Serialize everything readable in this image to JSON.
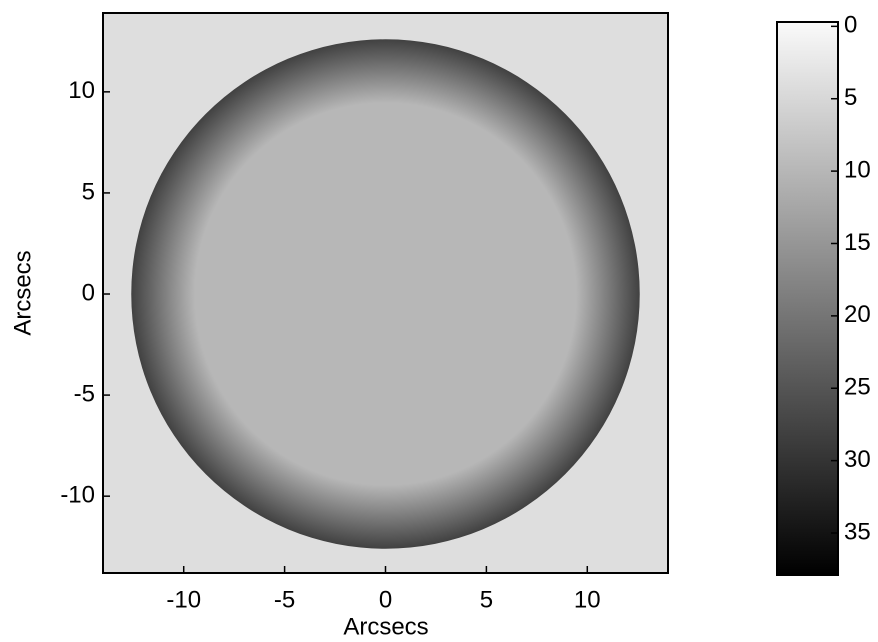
{
  "chart_data": {
    "type": "image",
    "xlabel": "Arcsecs",
    "ylabel": "Arcsecs",
    "xlim": [
      -14,
      14
    ],
    "ylim": [
      -13.8,
      13.9
    ],
    "xticks": [
      -10,
      -5,
      0,
      5,
      10
    ],
    "yticks": [
      -10,
      -5,
      0,
      5,
      10
    ],
    "background_value": 4,
    "disk": {
      "radius": 12.6,
      "center_value": 10,
      "rim_value": 28
    },
    "colorbar": {
      "lim": [
        -0.3,
        37.9
      ],
      "ticks": [
        0,
        5,
        10,
        15,
        20,
        25,
        30,
        35
      ]
    }
  }
}
